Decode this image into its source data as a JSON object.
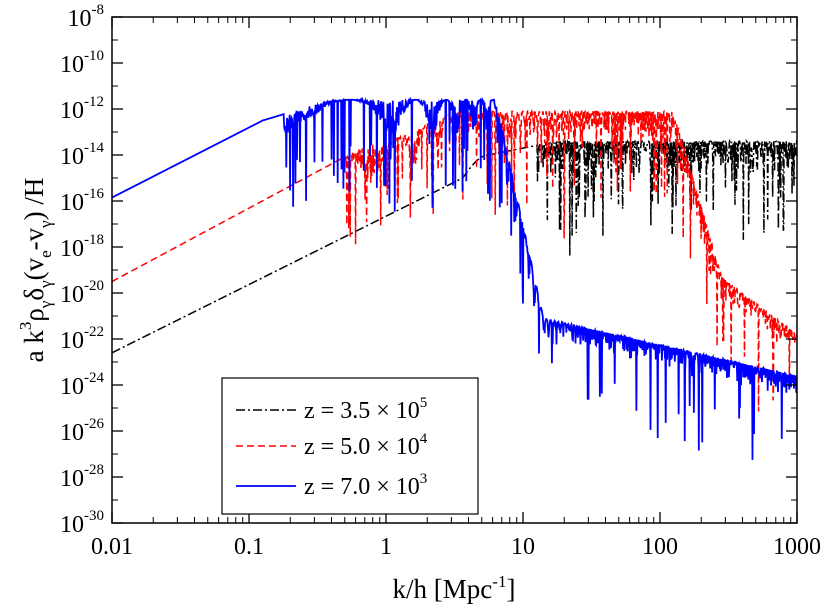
{
  "chart_data": {
    "type": "line",
    "title": "",
    "xlabel": {
      "base": "k/h [Mpc",
      "sup": "-1",
      "tail": "]"
    },
    "ylabel": {
      "parts": [
        "a k",
        "3",
        "ρ",
        "γ",
        "δ",
        "γ",
        "(v",
        "e",
        "-v",
        "γ",
        ") /H"
      ]
    },
    "xscale": "log",
    "yscale": "log",
    "xlim": [
      0.01,
      1000
    ],
    "ylim_exp": [
      -30,
      -8
    ],
    "x_ticks": [
      {
        "value": 0.01,
        "label": "0.01"
      },
      {
        "value": 0.1,
        "label": "0.1"
      },
      {
        "value": 1,
        "label": "1"
      },
      {
        "value": 10,
        "label": "10"
      },
      {
        "value": 100,
        "label": "100"
      },
      {
        "value": 1000,
        "label": "1000"
      }
    ],
    "y_ticks": [
      {
        "exp": -8,
        "base": "10",
        "sup": "-8"
      },
      {
        "exp": -10,
        "base": "10",
        "sup": "-10"
      },
      {
        "exp": -12,
        "base": "10",
        "sup": "-12"
      },
      {
        "exp": -14,
        "base": "10",
        "sup": "-14"
      },
      {
        "exp": -16,
        "base": "10",
        "sup": "-16"
      },
      {
        "exp": -18,
        "base": "10",
        "sup": "-18"
      },
      {
        "exp": -20,
        "base": "10",
        "sup": "-20"
      },
      {
        "exp": -22,
        "base": "10",
        "sup": "-22"
      },
      {
        "exp": -24,
        "base": "10",
        "sup": "-24"
      },
      {
        "exp": -26,
        "base": "10",
        "sup": "-26"
      },
      {
        "exp": -28,
        "base": "10",
        "sup": "-28"
      },
      {
        "exp": -30,
        "base": "10",
        "sup": "-30"
      }
    ],
    "legend_position": "bottom-left",
    "series": [
      {
        "name": "z = 3.5 × 10^5",
        "label_base": "z = 3.5 × 10",
        "label_sup": "5",
        "color": "#000000",
        "dash": "dashdot",
        "model": {
          "rise_log10x": [
            -2.0,
            0.56
          ],
          "rise_log10y": [
            -22.6,
            -15.0
          ],
          "peak_log10x": 0.75,
          "peak_log10y": -14.0,
          "plateau_log10y": -13.4,
          "osc_start_log10x": 1.1,
          "damp_log10x": null,
          "tail_log10y": null
        }
      },
      {
        "name": "z = 5.0 × 10^4",
        "label_base": "z = 5.0 × 10",
        "label_sup": "4",
        "color": "#ff0000",
        "dash": "dashed",
        "model": {
          "rise_log10x": [
            -2.0,
            -0.15
          ],
          "rise_log10y": [
            -19.5,
            -13.6
          ],
          "peak_log10x": 0.0,
          "peak_log10y": -13.5,
          "plateau_log10y": -12.1,
          "osc_start_log10x": -0.3,
          "damp_log10x": 2.1,
          "tail_log10y": -21.8
        }
      },
      {
        "name": "z = 7.0 × 10^3",
        "label_base": "z = 7.0 × 10",
        "label_sup": "3",
        "color": "#0000ff",
        "dash": "solid",
        "model": {
          "rise_log10x": [
            -2.0,
            -0.9
          ],
          "rise_log10y": [
            -15.85,
            -12.5
          ],
          "peak_log10x": -0.9,
          "peak_log10y": -12.5,
          "plateau_log10y": -11.6,
          "osc_start_log10x": -0.75,
          "damp_log10x": 0.8,
          "tail_log10y": -23.6
        }
      }
    ]
  }
}
